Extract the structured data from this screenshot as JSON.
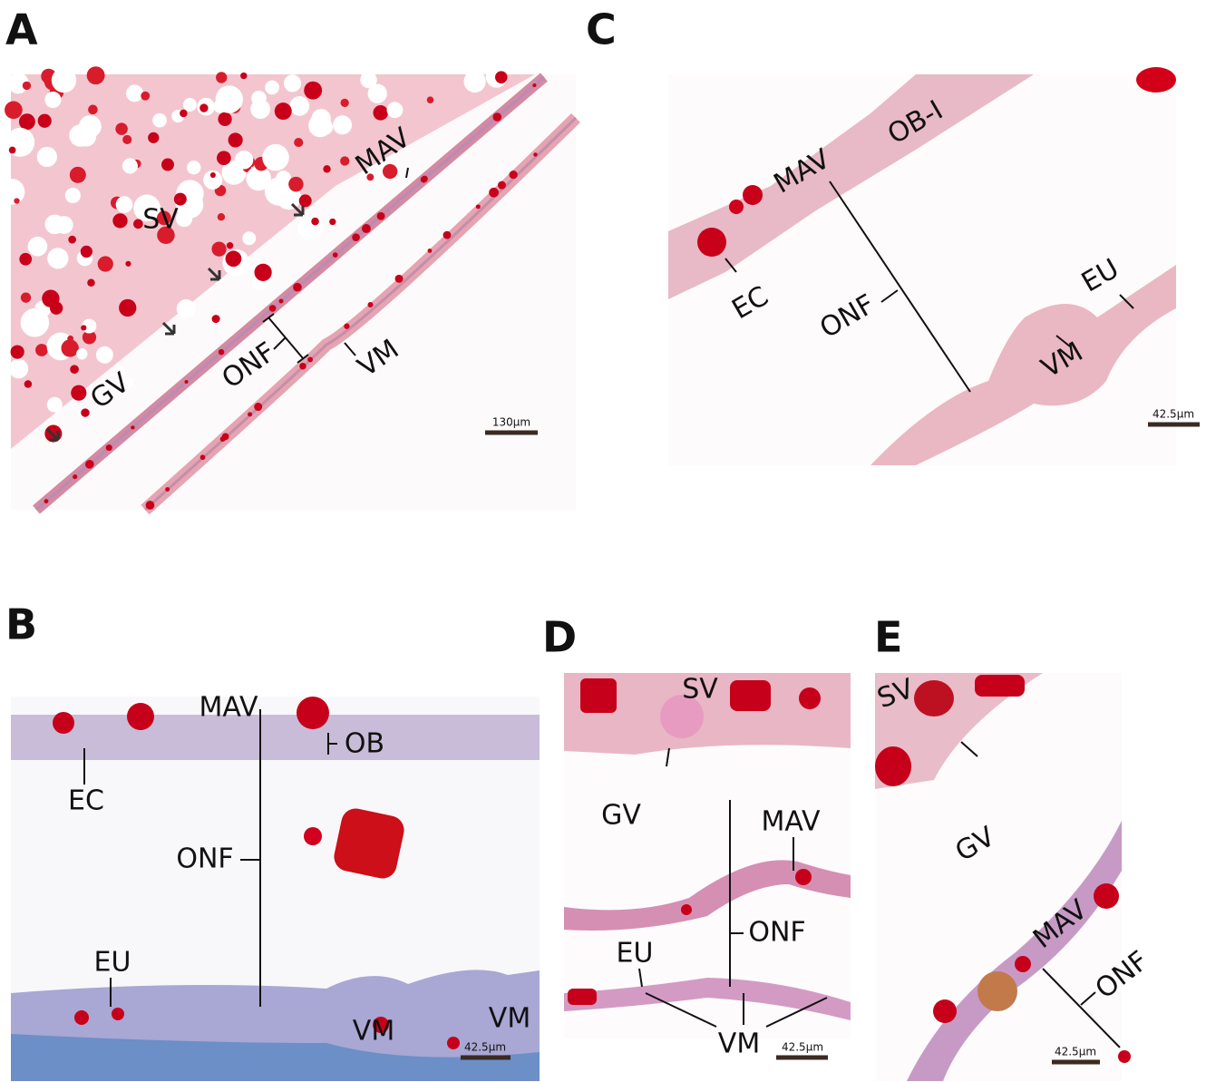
{
  "panels": [
    {
      "letter": "A",
      "labels": [
        "SV",
        "MAV",
        "GV",
        "ONF",
        "VM"
      ],
      "scale_bar": "130µm"
    },
    {
      "letter": "B",
      "labels": [
        "MAV",
        "OB",
        "EC",
        "ONF",
        "EU",
        "VM",
        "VM"
      ],
      "scale_bar": "42.5µm"
    },
    {
      "letter": "C",
      "labels": [
        "MAV",
        "OB-I",
        "EC",
        "ONF",
        "EU",
        "VM"
      ],
      "scale_bar": "42.5µm"
    },
    {
      "letter": "D",
      "labels": [
        "SV",
        "GV",
        "MAV",
        "ONF",
        "EU",
        "VM"
      ],
      "scale_bar": "42.5µm"
    },
    {
      "letter": "E",
      "labels": [
        "SV",
        "GV",
        "MAV",
        "ONF"
      ],
      "scale_bar": "42.5µm"
    }
  ]
}
